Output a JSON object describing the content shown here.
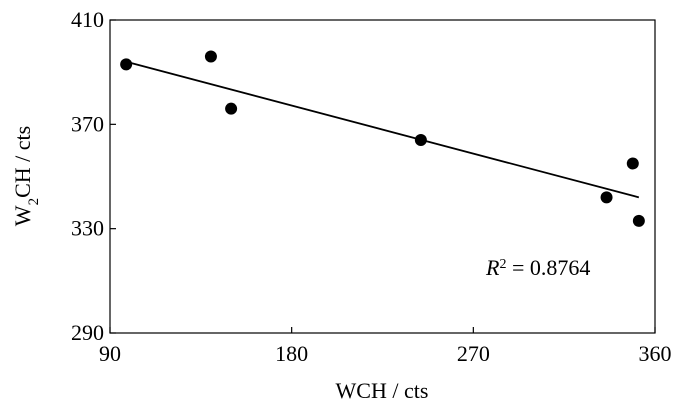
{
  "chart_data": {
    "type": "scatter",
    "title": "",
    "xlabel": "WCH / cts",
    "ylabel": {
      "base": "W",
      "sub": "2",
      "rest": "CH / cts"
    },
    "xlim": [
      90,
      360
    ],
    "ylim": [
      290,
      410
    ],
    "xticks": [
      90,
      180,
      270,
      360
    ],
    "yticks": [
      290,
      330,
      370,
      410
    ],
    "grid": false,
    "series": [
      {
        "points": [
          [
            98,
            393
          ],
          [
            140,
            396
          ],
          [
            150,
            376
          ],
          [
            244,
            364
          ],
          [
            336,
            342
          ],
          [
            349,
            355
          ],
          [
            352,
            333
          ]
        ]
      }
    ],
    "trendline": {
      "x": [
        98,
        352
      ],
      "y": [
        394,
        342
      ]
    },
    "annotation": {
      "var": "R",
      "sup": "2",
      "text": " = 0.8764"
    },
    "colors": {
      "points": "#000000",
      "line": "#000000",
      "axes": "#000000"
    }
  }
}
